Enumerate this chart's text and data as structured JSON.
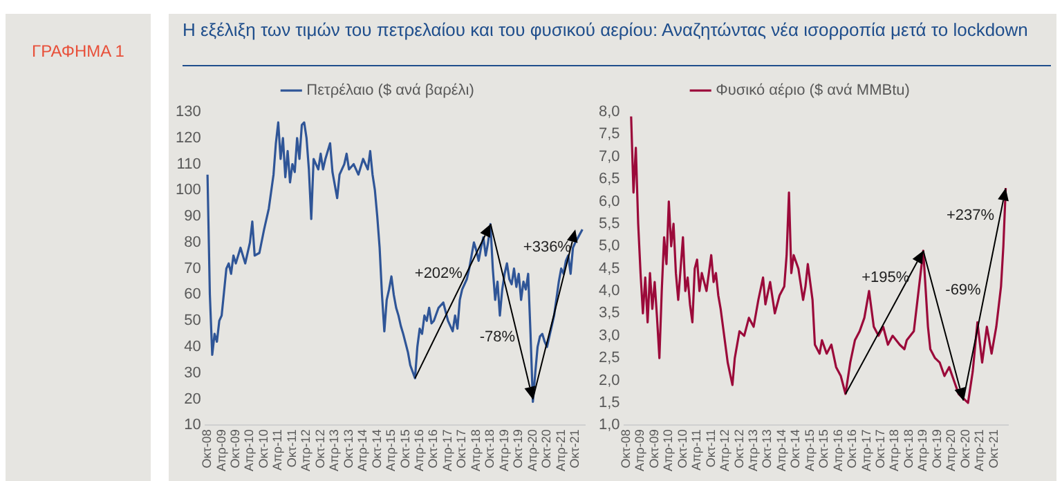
{
  "chart_data": [
    {
      "type": "line",
      "title": "Η εξέλιξη των τιμών του πετρελαίου και του φυσικού αερίου: Αναζητώντας νέα ισορροπία μετά το lockdown",
      "annotations": [
        "ΓΡΑΦΗΜΑ 1",
        "+202%",
        "-78%",
        {
          "text": "+336%",
          "x": "2021-10",
          "y": 85
        }
      ],
      "legend": "top",
      "marker": "none",
      "xlim": [
        "2008-09",
        "2022-02"
      ],
      "ylim": [
        10,
        130
      ],
      "yticks": [
        10,
        20,
        30,
        40,
        50,
        60,
        70,
        80,
        90,
        100,
        110,
        120,
        130
      ],
      "xticks": [
        {
          "value": "2008-10",
          "label": "Οκτ-08"
        },
        {
          "value": "2009-04",
          "label": "Απρ-09"
        },
        {
          "value": "2009-10",
          "label": "Οκτ-09"
        },
        {
          "value": "2010-04",
          "label": "Απρ-10"
        },
        {
          "value": "2010-10",
          "label": "Οκτ-10"
        },
        {
          "value": "2011-04",
          "label": "Απρ-11"
        },
        {
          "value": "2011-10",
          "label": "Οκτ-11"
        },
        {
          "value": "2012-04",
          "label": "Απρ-12"
        },
        {
          "value": "2012-10",
          "label": "Οκτ-12"
        },
        {
          "value": "2013-04",
          "label": "Απρ-13"
        },
        {
          "value": "2013-10",
          "label": "Οκτ-13"
        },
        {
          "value": "2014-04",
          "label": "Απρ-14"
        },
        {
          "value": "2014-10",
          "label": "Οκτ-14"
        },
        {
          "value": "2015-04",
          "label": "Απρ-15"
        },
        {
          "value": "2015-10",
          "label": "Οκτ-15"
        },
        {
          "value": "2016-04",
          "label": "Απρ-16"
        },
        {
          "value": "2016-10",
          "label": "Οκτ-16"
        },
        {
          "value": "2017-04",
          "label": "Απρ-17"
        },
        {
          "value": "2017-10",
          "label": "Οκτ-17"
        },
        {
          "value": "2018-04",
          "label": "Απρ-18"
        },
        {
          "value": "2018-10",
          "label": "Οκτ-18"
        },
        {
          "value": "2019-04",
          "label": "Απρ-19"
        },
        {
          "value": "2019-10",
          "label": "Οκτ-19"
        },
        {
          "value": "2020-04",
          "label": "Απρ-20"
        },
        {
          "value": "2020-10",
          "label": "Οκτ-20"
        },
        {
          "value": "2021-04",
          "label": "Απρ-21"
        },
        {
          "value": "2021-10",
          "label": "Οκτ-21"
        }
      ],
      "x": [
        "2008-10",
        "2008-11",
        "2008-12",
        "2009-01",
        "2009-02",
        "2009-03",
        "2009-04",
        "2009-05",
        "2009-06",
        "2009-07",
        "2009-08",
        "2009-09",
        "2009-10",
        "2009-12",
        "2010-02",
        "2010-04",
        "2010-05",
        "2010-06",
        "2010-08",
        "2010-10",
        "2010-12",
        "2011-02",
        "2011-03",
        "2011-04",
        "2011-05",
        "2011-06",
        "2011-07",
        "2011-08",
        "2011-09",
        "2011-10",
        "2011-11",
        "2011-12",
        "2012-01",
        "2012-02",
        "2012-03",
        "2012-04",
        "2012-05",
        "2012-06",
        "2012-07",
        "2012-08",
        "2012-09",
        "2012-10",
        "2012-11",
        "2012-12",
        "2013-02",
        "2013-03",
        "2013-05",
        "2013-06",
        "2013-08",
        "2013-09",
        "2013-10",
        "2013-12",
        "2014-02",
        "2014-04",
        "2014-06",
        "2014-07",
        "2014-08",
        "2014-09",
        "2014-10",
        "2014-11",
        "2014-12",
        "2015-01",
        "2015-02",
        "2015-03",
        "2015-04",
        "2015-05",
        "2015-06",
        "2015-07",
        "2015-08",
        "2015-09",
        "2015-11",
        "2015-12",
        "2016-02",
        "2016-03",
        "2016-04",
        "2016-05",
        "2016-06",
        "2016-07",
        "2016-08",
        "2016-09",
        "2016-10",
        "2016-12",
        "2017-02",
        "2017-04",
        "2017-06",
        "2017-07",
        "2017-08",
        "2017-09",
        "2017-10",
        "2017-12",
        "2018-01",
        "2018-02",
        "2018-03",
        "2018-04",
        "2018-05",
        "2018-06",
        "2018-07",
        "2018-08",
        "2018-09",
        "2018-10",
        "2018-11",
        "2018-12",
        "2019-01",
        "2019-02",
        "2019-03",
        "2019-04",
        "2019-05",
        "2019-06",
        "2019-07",
        "2019-08",
        "2019-09",
        "2019-10",
        "2019-11",
        "2019-12",
        "2020-01",
        "2020-02",
        "2020-03",
        "2020-04",
        "2020-05",
        "2020-06",
        "2020-07",
        "2020-08",
        "2020-09",
        "2020-10",
        "2021-01",
        "2021-03",
        "2021-04",
        "2021-05",
        "2021-06",
        "2021-07",
        "2021-08",
        "2021-09",
        "2021-10",
        "2022-01"
      ],
      "series": [
        {
          "name": "Πετρέλαιο ($ ανά βαρέλι)",
          "color": "#2f5597",
          "values": [
            106,
            60,
            37,
            45,
            42,
            50,
            52,
            61,
            70,
            72,
            68,
            75,
            72,
            78,
            72,
            80,
            88,
            75,
            76,
            85,
            93,
            106,
            118,
            126,
            112,
            120,
            105,
            115,
            103,
            110,
            107,
            120,
            112,
            125,
            126,
            120,
            108,
            89,
            112,
            110,
            108,
            114,
            108,
            112,
            118,
            107,
            97,
            106,
            110,
            114,
            108,
            110,
            106,
            112,
            108,
            115,
            106,
            100,
            90,
            78,
            60,
            46,
            58,
            62,
            67,
            60,
            55,
            52,
            48,
            45,
            38,
            33,
            28,
            40,
            47,
            45,
            52,
            50,
            55,
            49,
            50,
            55,
            57,
            50,
            46,
            52,
            47,
            58,
            62,
            66,
            70,
            75,
            80,
            77,
            73,
            78,
            82,
            75,
            80,
            87,
            70,
            58,
            65,
            52,
            62,
            68,
            72,
            66,
            64,
            70,
            63,
            68,
            58,
            65,
            62,
            68,
            45,
            19,
            30,
            40,
            44,
            45,
            42,
            40,
            52,
            65,
            70,
            68,
            73,
            75,
            68,
            78,
            80,
            85
          ]
        }
      ]
    },
    {
      "type": "line",
      "annotations": [
        {
          "text": "+195%",
          "x": "2019-04",
          "y": 4.9
        },
        "-69%",
        {
          "text": "+237%",
          "x": "2022-03",
          "y": 6.3
        }
      ],
      "legend": "top",
      "marker": "none",
      "xlim": [
        "2008-09",
        "2022-04"
      ],
      "ylim": [
        1,
        8
      ],
      "yticks": [
        {
          "value": 1,
          "label": "1,0"
        },
        {
          "value": 1.5,
          "label": "1,5"
        },
        {
          "value": 2,
          "label": "2,0"
        },
        {
          "value": 2.5,
          "label": "2,5"
        },
        {
          "value": 3,
          "label": "3,0"
        },
        {
          "value": 3.5,
          "label": "3,5"
        },
        {
          "value": 4,
          "label": "4,0"
        },
        {
          "value": 4.5,
          "label": "4,5"
        },
        {
          "value": 5,
          "label": "5,0"
        },
        {
          "value": 5.5,
          "label": "5,5"
        },
        {
          "value": 6,
          "label": "6,0"
        },
        {
          "value": 6.5,
          "label": "6,5"
        },
        {
          "value": 7,
          "label": "7,0"
        },
        {
          "value": 7.5,
          "label": "7,5"
        },
        {
          "value": 8,
          "label": "8,0"
        }
      ],
      "xticks": [
        {
          "value": "2008-10",
          "label": "Οκτ-08"
        },
        {
          "value": "2009-04",
          "label": "Απρ-09"
        },
        {
          "value": "2009-10",
          "label": "Οκτ-09"
        },
        {
          "value": "2010-04",
          "label": "Απρ-10"
        },
        {
          "value": "2010-10",
          "label": "Οκτ-10"
        },
        {
          "value": "2011-04",
          "label": "Απρ-11"
        },
        {
          "value": "2011-10",
          "label": "Οκτ-11"
        },
        {
          "value": "2012-04",
          "label": "Απρ-12"
        },
        {
          "value": "2012-10",
          "label": "Οκτ-12"
        },
        {
          "value": "2013-04",
          "label": "Απρ-13"
        },
        {
          "value": "2013-10",
          "label": "Οκτ-13"
        },
        {
          "value": "2014-04",
          "label": "Απρ-14"
        },
        {
          "value": "2014-10",
          "label": "Οκτ-14"
        },
        {
          "value": "2015-04",
          "label": "Απρ-15"
        },
        {
          "value": "2015-10",
          "label": "Οκτ-15"
        },
        {
          "value": "2016-04",
          "label": "Απρ-16"
        },
        {
          "value": "2016-10",
          "label": "Οκτ-16"
        },
        {
          "value": "2017-04",
          "label": "Απρ-17"
        },
        {
          "value": "2017-10",
          "label": "Οκτ-17"
        },
        {
          "value": "2018-04",
          "label": "Απρ-18"
        },
        {
          "value": "2018-10",
          "label": "Οκτ-18"
        },
        {
          "value": "2019-04",
          "label": "Απρ-19"
        },
        {
          "value": "2019-10",
          "label": "Οκτ-19"
        },
        {
          "value": "2020-04",
          "label": "Απρ-20"
        },
        {
          "value": "2020-10",
          "label": "Οκτ-20"
        },
        {
          "value": "2021-04",
          "label": "Απρ-21"
        },
        {
          "value": "2021-10",
          "label": "Οκτ-21"
        }
      ],
      "x": [
        "2008-12",
        "2009-01",
        "2009-02",
        "2009-03",
        "2009-04",
        "2009-05",
        "2009-06",
        "2009-07",
        "2009-08",
        "2009-09",
        "2009-10",
        "2009-11",
        "2009-12",
        "2010-01",
        "2010-02",
        "2010-03",
        "2010-04",
        "2010-05",
        "2010-06",
        "2010-07",
        "2010-08",
        "2010-09",
        "2010-10",
        "2010-11",
        "2010-12",
        "2011-01",
        "2011-02",
        "2011-03",
        "2011-04",
        "2011-05",
        "2011-06",
        "2011-08",
        "2011-10",
        "2011-11",
        "2011-12",
        "2012-01",
        "2012-02",
        "2012-03",
        "2012-05",
        "2012-07",
        "2012-08",
        "2012-09",
        "2012-10",
        "2012-12",
        "2013-02",
        "2013-04",
        "2013-06",
        "2013-08",
        "2013-09",
        "2013-11",
        "2014-01",
        "2014-03",
        "2014-05",
        "2014-06",
        "2014-07",
        "2014-08",
        "2014-09",
        "2014-11",
        "2015-01",
        "2015-02",
        "2015-03",
        "2015-05",
        "2015-06",
        "2015-08",
        "2015-09",
        "2015-11",
        "2016-01",
        "2016-03",
        "2016-05",
        "2016-07",
        "2016-09",
        "2016-11",
        "2017-01",
        "2017-03",
        "2017-05",
        "2017-07",
        "2017-09",
        "2017-11",
        "2018-01",
        "2018-03",
        "2018-06",
        "2018-08",
        "2018-09",
        "2018-12",
        "2019-04",
        "2019-06",
        "2019-07",
        "2019-09",
        "2019-11",
        "2020-01",
        "2020-03",
        "2020-05",
        "2020-07",
        "2020-09",
        "2020-11",
        "2021-01",
        "2021-03",
        "2021-05",
        "2021-07",
        "2021-09",
        "2021-11",
        "2022-01",
        "2022-02",
        "2022-03"
      ],
      "series": [
        {
          "name": "Φυσικό αέριο ($ ανά MMBtu)",
          "color": "#9b0a3a",
          "values": [
            7.9,
            6.2,
            7.2,
            5.5,
            4.4,
            3.5,
            4.3,
            3.3,
            4.4,
            3.6,
            4.2,
            3.4,
            2.5,
            4.0,
            5.2,
            4.6,
            6.0,
            5.0,
            5.5,
            4.4,
            3.8,
            4.5,
            5.2,
            4.0,
            4.3,
            3.7,
            3.3,
            4.5,
            4.7,
            4.0,
            4.4,
            4.0,
            4.8,
            4.2,
            4.4,
            3.9,
            3.6,
            3.2,
            2.4,
            1.9,
            2.5,
            2.8,
            3.1,
            3.0,
            3.4,
            3.2,
            3.8,
            4.3,
            3.7,
            4.2,
            3.5,
            3.9,
            4.1,
            4.8,
            6.2,
            4.4,
            4.8,
            4.5,
            3.8,
            4.1,
            4.6,
            3.8,
            2.8,
            2.6,
            2.9,
            2.6,
            2.8,
            2.3,
            2.1,
            1.7,
            2.4,
            2.9,
            3.1,
            3.4,
            4.0,
            3.2,
            3.0,
            3.2,
            2.8,
            3.0,
            2.8,
            2.7,
            2.9,
            3.1,
            4.9,
            3.2,
            2.7,
            2.5,
            2.4,
            2.1,
            2.3,
            2.0,
            1.7,
            1.6,
            1.5,
            2.2,
            3.3,
            2.4,
            3.2,
            2.6,
            3.2,
            4.1,
            5.0,
            6.3
          ]
        }
      ]
    }
  ]
}
